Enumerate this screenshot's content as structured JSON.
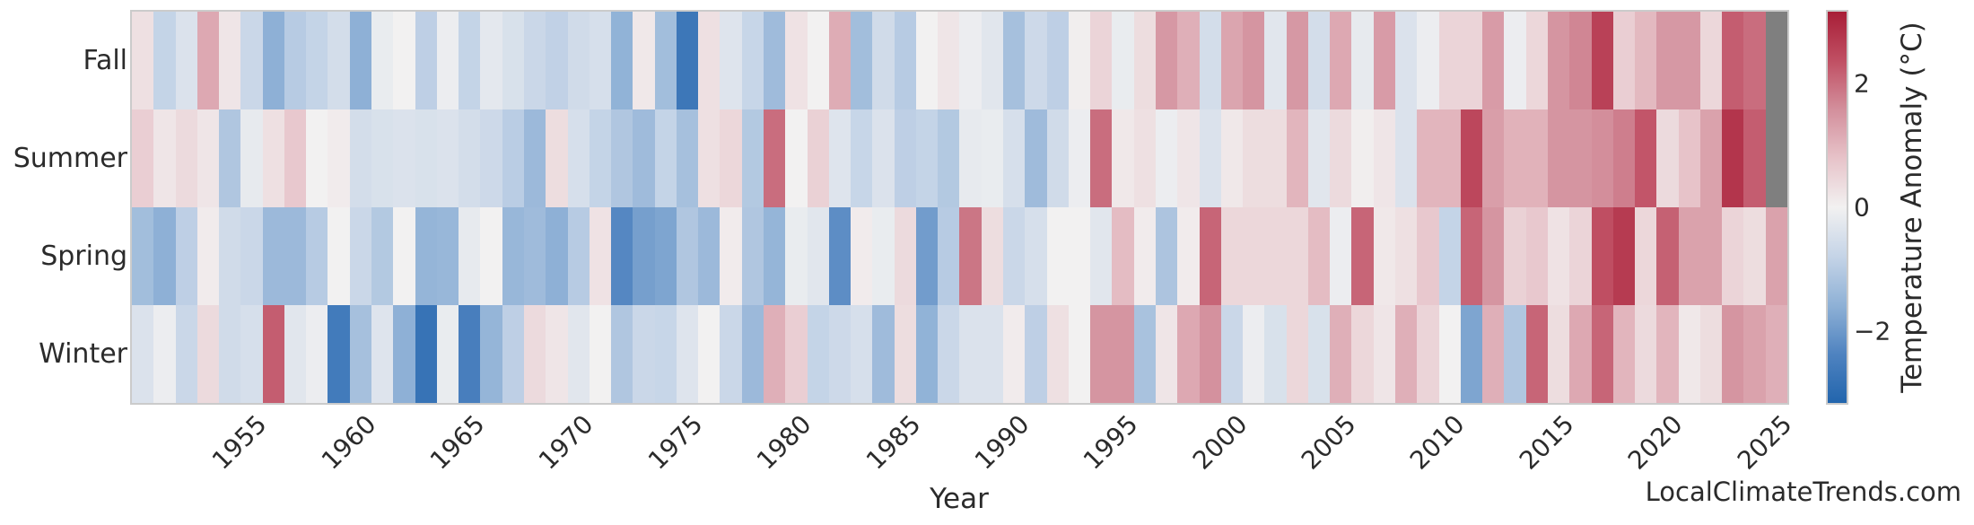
{
  "watermark": "LocalClimateTrends.com",
  "colors": {
    "background": "#ffffff",
    "text": "#2b2b2b",
    "frame": "#cbcbcb",
    "missing_cell": "#7f7f7f",
    "colormap_stops": [
      {
        "t": 0.0,
        "color": "#2265ad"
      },
      {
        "t": 0.125,
        "color": "#4f83c0"
      },
      {
        "t": 0.25,
        "color": "#8fb1d6"
      },
      {
        "t": 0.375,
        "color": "#c5d4e7"
      },
      {
        "t": 0.5,
        "color": "#f2f1f1"
      },
      {
        "t": 0.625,
        "color": "#e7c3c9"
      },
      {
        "t": 0.75,
        "color": "#d38f9c"
      },
      {
        "t": 0.875,
        "color": "#c04f63"
      },
      {
        "t": 1.0,
        "color": "#a81e37"
      }
    ]
  },
  "chart_data": {
    "type": "heatmap",
    "title": "",
    "xlabel": "Year",
    "colorbar_label": "Temperature Anomaly (°C)",
    "colormap": "red-blue diverging (seaborn vlag style)",
    "vmin": -3.17,
    "vmax": 3.17,
    "legend_position": "right colorbar",
    "grid": false,
    "colorbar_ticks": [
      {
        "label": "2",
        "value": 2
      },
      {
        "label": "0",
        "value": 0
      },
      {
        "label": "−2",
        "value": -2
      }
    ],
    "x_tick_years": [
      1955,
      1960,
      1965,
      1970,
      1975,
      1980,
      1985,
      1990,
      1995,
      2000,
      2005,
      2010,
      2015,
      2020,
      2025
    ],
    "x_tick_labels": [
      "1955",
      "1960",
      "1965",
      "1970",
      "1975",
      "1980",
      "1985",
      "1990",
      "1995",
      "2000",
      "2005",
      "2010",
      "2015",
      "2020",
      "2025"
    ],
    "rows": [
      "Fall",
      "Summer",
      "Spring",
      "Winter"
    ],
    "years_start": 1950,
    "years_end": 2025,
    "missing_cells": [
      [
        "Fall",
        2025
      ],
      [
        "Summer",
        2025
      ]
    ],
    "series": [
      {
        "name": "Fall",
        "values": [
          0.3,
          -0.8,
          -0.4,
          1.2,
          0.2,
          -0.7,
          -1.6,
          -1.0,
          -0.8,
          -0.55,
          -1.6,
          -0.15,
          0.0,
          -0.9,
          -0.1,
          -0.8,
          -0.25,
          -0.45,
          -0.7,
          -0.85,
          -0.6,
          -0.5,
          -1.55,
          0.15,
          -1.3,
          -2.7,
          0.3,
          -0.35,
          -0.75,
          -1.35,
          0.25,
          0.0,
          1.15,
          -1.3,
          -0.6,
          -1.0,
          0.0,
          0.2,
          -0.1,
          -0.3,
          -1.25,
          -0.65,
          -0.9,
          0.05,
          0.5,
          -0.15,
          0.35,
          1.45,
          1.1,
          -0.55,
          1.25,
          1.5,
          -0.3,
          1.45,
          -0.55,
          1.2,
          -0.2,
          1.4,
          -0.4,
          -0.1,
          0.5,
          0.5,
          1.4,
          -0.1,
          0.45,
          1.5,
          1.7,
          2.6,
          0.6,
          0.95,
          1.45,
          1.45,
          0.45,
          2.2,
          2.0,
          null
        ]
      },
      {
        "name": "Summer",
        "values": [
          0.6,
          0.2,
          0.4,
          0.2,
          -1.1,
          -0.2,
          0.3,
          0.7,
          0.0,
          0.1,
          -0.55,
          -0.45,
          -0.4,
          -0.45,
          -0.4,
          -0.55,
          -0.65,
          -0.95,
          -1.4,
          0.35,
          -0.5,
          -0.8,
          -1.1,
          -1.35,
          -0.8,
          -1.25,
          0.3,
          0.45,
          -1.05,
          2.0,
          0.0,
          0.55,
          -0.35,
          -0.75,
          -0.4,
          -0.9,
          -0.8,
          -1.05,
          -0.2,
          -0.15,
          -0.5,
          -1.35,
          -0.6,
          -0.1,
          2.0,
          0.15,
          0.3,
          -0.1,
          0.2,
          -0.4,
          0.15,
          0.35,
          0.35,
          1.0,
          -0.3,
          0.4,
          0.05,
          0.2,
          -0.4,
          1.0,
          1.0,
          2.5,
          1.35,
          1.05,
          1.05,
          1.5,
          1.5,
          1.6,
          1.8,
          2.3,
          0.4,
          0.8,
          1.3,
          2.8,
          2.2,
          null
        ]
      },
      {
        "name": "Spring",
        "values": [
          -1.3,
          -1.6,
          -0.9,
          0.1,
          -0.6,
          -0.7,
          -1.4,
          -1.4,
          -1.0,
          0.0,
          -0.7,
          -1.05,
          0.0,
          -1.5,
          -1.45,
          -0.2,
          0.0,
          -1.45,
          -1.35,
          -1.6,
          -1.0,
          0.25,
          -2.3,
          -1.9,
          -1.8,
          -1.1,
          -1.4,
          0.1,
          -1.1,
          -1.5,
          -0.15,
          -0.3,
          -2.2,
          0.1,
          -0.15,
          0.4,
          -1.95,
          -1.0,
          1.9,
          0.35,
          -0.7,
          -0.5,
          0.0,
          0.0,
          -0.3,
          0.9,
          0.1,
          -1.15,
          0.1,
          2.1,
          0.45,
          0.45,
          0.45,
          0.45,
          0.9,
          -0.1,
          2.1,
          0.15,
          0.3,
          0.7,
          -0.8,
          2.1,
          1.5,
          0.55,
          0.7,
          0.25,
          0.5,
          2.4,
          2.7,
          0.45,
          2.15,
          1.3,
          1.3,
          0.5,
          0.35,
          1.3
        ]
      },
      {
        "name": "Winter",
        "values": [
          -0.4,
          -0.1,
          -0.7,
          0.4,
          -0.6,
          -0.5,
          2.2,
          -0.3,
          -0.1,
          -2.6,
          -1.25,
          -0.35,
          -1.6,
          -2.8,
          -0.15,
          -2.5,
          -1.5,
          -0.9,
          0.4,
          0.2,
          -0.3,
          0.0,
          -1.1,
          -0.7,
          -0.75,
          -0.35,
          0.0,
          -0.7,
          -1.4,
          1.1,
          0.6,
          -0.8,
          -0.65,
          -0.5,
          -1.35,
          0.35,
          -1.55,
          -0.7,
          -0.4,
          -0.4,
          0.1,
          -0.9,
          0.3,
          0.0,
          1.5,
          1.5,
          -1.2,
          0.2,
          1.2,
          1.55,
          -0.7,
          -0.1,
          -0.45,
          0.45,
          -0.45,
          1.1,
          0.45,
          0.2,
          1.1,
          0.5,
          0.0,
          -1.8,
          1.1,
          -1.1,
          2.1,
          0.35,
          1.2,
          2.1,
          1.0,
          0.4,
          1.0,
          0.15,
          0.35,
          1.5,
          1.3,
          1.1
        ]
      }
    ]
  }
}
